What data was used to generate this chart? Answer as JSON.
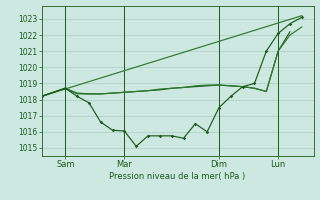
{
  "background_color": "#cce8e0",
  "grid_color": "#aaccc4",
  "line_color_dark": "#1a5c1a",
  "line_color_medium": "#2d7a2d",
  "xlabel_text": "Pression niveau de la mer( hPa )",
  "ylim": [
    1014.5,
    1023.8
  ],
  "yticks": [
    1015,
    1016,
    1017,
    1018,
    1019,
    1020,
    1021,
    1022,
    1023
  ],
  "xtick_labels": [
    "Sam",
    "Mar",
    "Dim",
    "Lun"
  ],
  "xtick_positions": [
    2,
    7,
    15,
    20
  ],
  "xlim": [
    0,
    23
  ],
  "vline_positions": [
    2,
    7,
    15,
    20
  ],
  "line1_x": [
    0,
    2,
    3,
    4,
    5,
    6,
    7,
    8,
    9,
    10,
    11,
    12,
    13,
    14,
    15,
    16,
    17,
    18,
    19,
    20,
    21
  ],
  "line1_y": [
    1018.2,
    1018.7,
    1018.4,
    1018.35,
    1018.35,
    1018.4,
    1018.45,
    1018.5,
    1018.55,
    1018.6,
    1018.7,
    1018.75,
    1018.8,
    1018.85,
    1018.9,
    1018.85,
    1018.8,
    1018.7,
    1018.5,
    1021.0,
    1022.2
  ],
  "line2_x": [
    0,
    2,
    3,
    4,
    5,
    6,
    7,
    8,
    9,
    10,
    11,
    12,
    13,
    14,
    15,
    16,
    17,
    18,
    19,
    20,
    21,
    22
  ],
  "line2_y": [
    1018.2,
    1018.7,
    1018.2,
    1017.8,
    1016.6,
    1016.1,
    1016.05,
    1015.1,
    1015.75,
    1015.75,
    1015.75,
    1015.6,
    1016.5,
    1016.0,
    1017.5,
    1018.2,
    1018.8,
    1019.0,
    1021.0,
    1022.1,
    1022.7,
    1023.1
  ],
  "line3_x": [
    0,
    22
  ],
  "line3_y": [
    1018.2,
    1023.2
  ],
  "line4_x": [
    0,
    2,
    3,
    4,
    5,
    6,
    7,
    8,
    9,
    10,
    11,
    12,
    13,
    14,
    15,
    16,
    17,
    18,
    19,
    20,
    21,
    22
  ],
  "line4_y": [
    1018.2,
    1018.7,
    1018.35,
    1018.35,
    1018.35,
    1018.4,
    1018.45,
    1018.5,
    1018.55,
    1018.65,
    1018.7,
    1018.75,
    1018.85,
    1018.9,
    1018.9,
    1018.85,
    1018.8,
    1018.7,
    1018.5,
    1021.0,
    1022.0,
    1022.5
  ]
}
